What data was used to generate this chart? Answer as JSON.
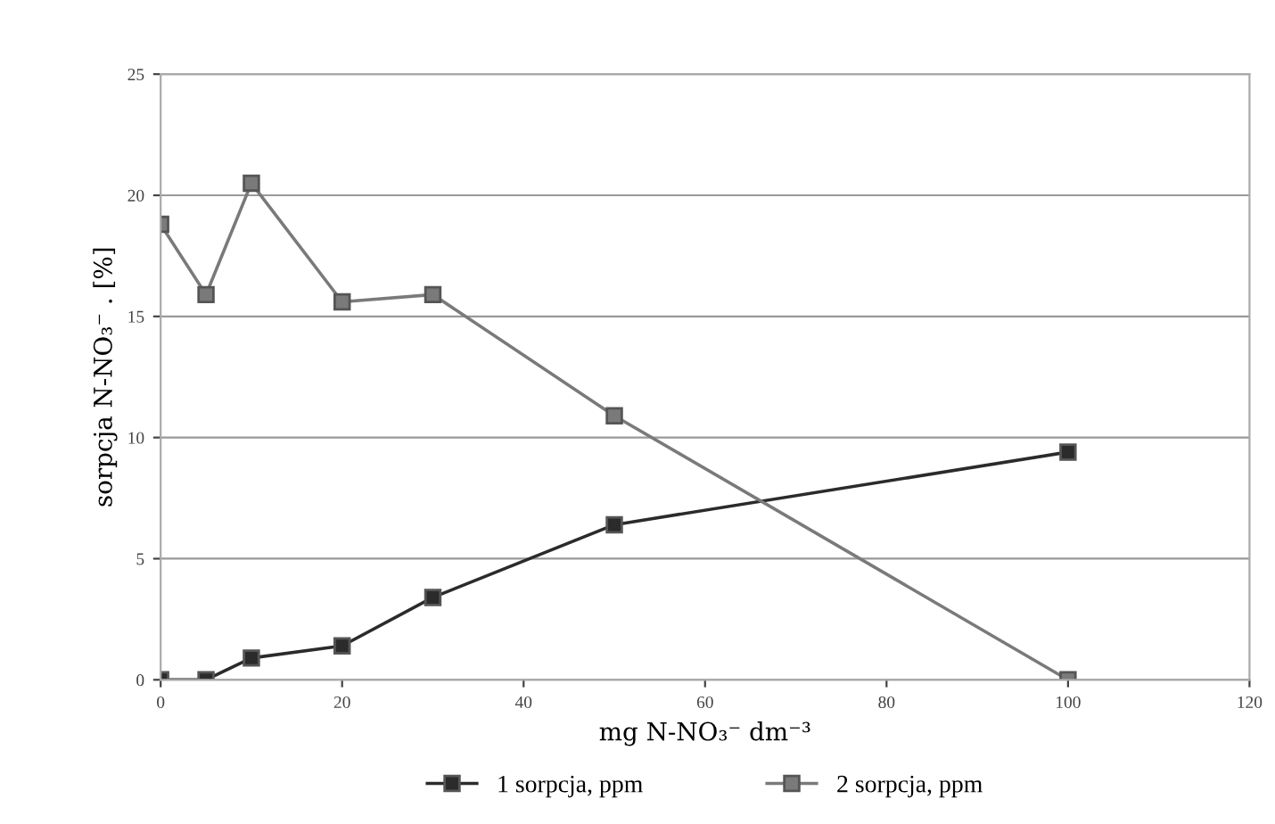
{
  "chart_data": {
    "type": "line",
    "xlabel": "mg N-NO₃⁻ dm⁻³",
    "ylabel": "sorpcja N-NO₃⁻ . [%]",
    "x": [
      0,
      5,
      10,
      20,
      30,
      50,
      100
    ],
    "series": [
      {
        "name": "1 sorpcja, ppm",
        "color": "#2b2b2b",
        "values": [
          0,
          0,
          0.9,
          1.4,
          3.4,
          6.4,
          9.4
        ]
      },
      {
        "name": "2 sorpcja, ppm",
        "color": "#7a7a7a",
        "values": [
          18.8,
          15.9,
          20.5,
          15.6,
          15.9,
          10.9,
          0
        ]
      }
    ],
    "xlim": [
      0,
      120
    ],
    "xticks": [
      0,
      20,
      40,
      60,
      80,
      100,
      120
    ],
    "ylim": [
      0,
      25
    ],
    "yticks": [
      0,
      5,
      10,
      15,
      20,
      25
    ],
    "grid": "y",
    "legend": "bottom",
    "marker": "square",
    "line_style": "solid"
  }
}
